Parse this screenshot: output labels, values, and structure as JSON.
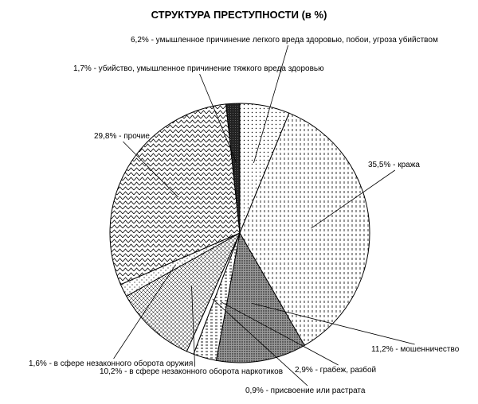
{
  "chart_data": {
    "type": "pie",
    "title": "СТРУКТУРА ПРЕСТУПНОСТИ  (в %)",
    "legend": "none",
    "slices": [
      {
        "label": "6,2% - умышленное причинение легкого вреда здоровью, побои, угроза убийством",
        "value": 6.2
      },
      {
        "label": "35,5% - кража",
        "value": 35.5
      },
      {
        "label": "11,2% - мошенничество",
        "value": 11.2
      },
      {
        "label": "2,9% - грабеж, разбой",
        "value": 2.9
      },
      {
        "label": "0,9% - присвоение или растрата",
        "value": 0.9
      },
      {
        "label": "10,2% - в сфере незаконного оборота наркотиков",
        "value": 10.2
      },
      {
        "label": "1,6% - в сфере незаконного оборота оружия",
        "value": 1.6
      },
      {
        "label": "29,8% - прочие",
        "value": 29.8
      },
      {
        "label": "1,7% - убийство, умышленное причинение тяжкого вреда здоровью",
        "value": 1.7
      }
    ]
  }
}
